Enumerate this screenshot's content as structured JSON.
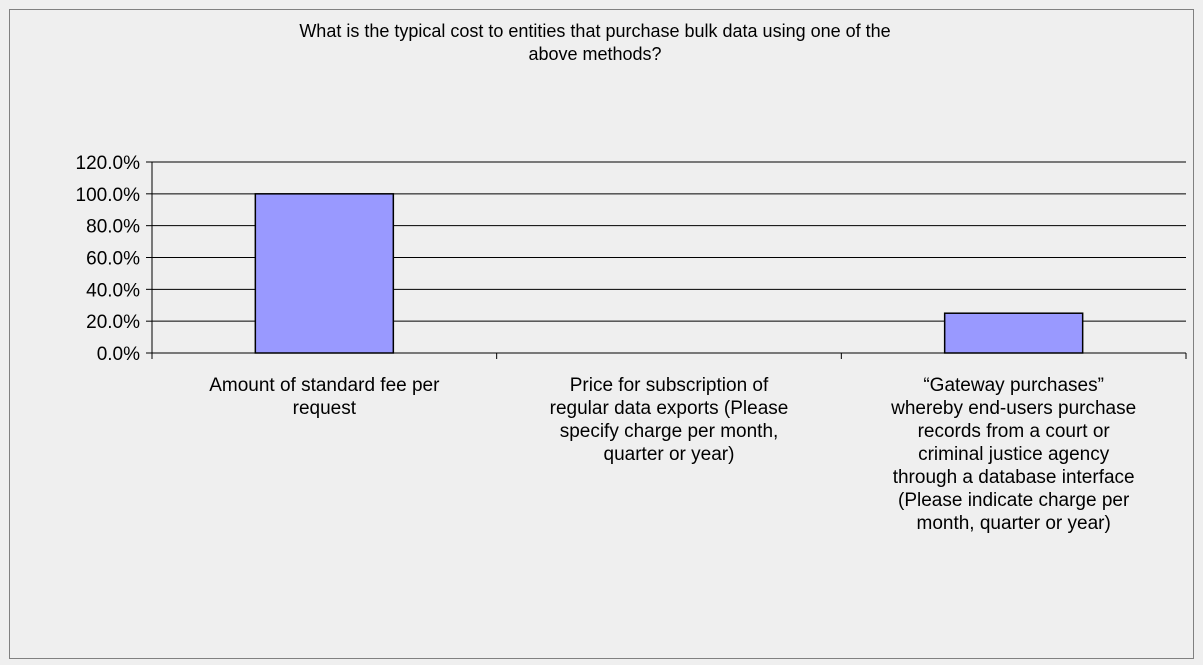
{
  "chart_data": {
    "type": "bar",
    "title_lines": [
      "What is the typical cost to entities that purchase bulk data using one of the",
      "above methods?"
    ],
    "categories": [
      {
        "label_lines": [
          "Amount of standard fee per",
          "request"
        ],
        "value": 100.0
      },
      {
        "label_lines": [
          "Price for subscription of",
          "regular data exports (Please",
          "specify charge per month,",
          "quarter or year)"
        ],
        "value": 0.0
      },
      {
        "label_lines": [
          "“Gateway purchases”",
          "whereby end-users purchase",
          "records from a court or",
          "criminal justice agency",
          "through a database interface",
          "(Please indicate charge per",
          "month, quarter or year)"
        ],
        "value": 25.0
      }
    ],
    "ylim": [
      0,
      120
    ],
    "ytick_step": 20,
    "ytick_labels": [
      "0.0%",
      "20.0%",
      "40.0%",
      "60.0%",
      "80.0%",
      "100.0%",
      "120.0%"
    ],
    "bar_color": "#9999ff",
    "grid": true,
    "legend": "none"
  }
}
